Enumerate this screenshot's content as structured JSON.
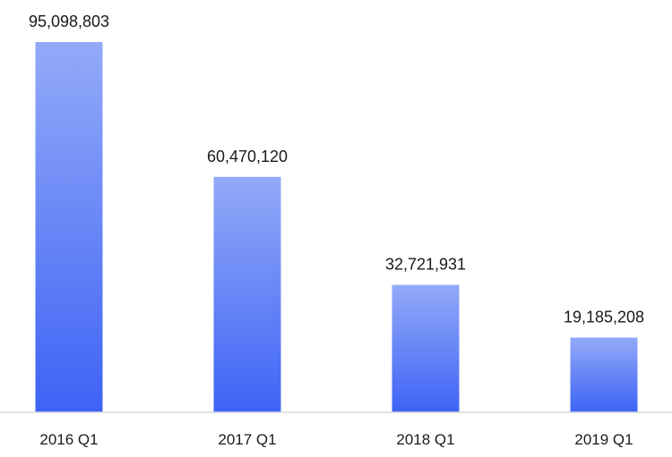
{
  "chart_data": {
    "type": "bar",
    "categories": [
      "2016 Q1",
      "2017 Q1",
      "2018 Q1",
      "2019 Q1"
    ],
    "values": [
      95098803,
      60470120,
      32721931,
      19185208
    ],
    "value_labels": [
      "95,098,803",
      "60,470,120",
      "32,721,931",
      "19,185,208"
    ],
    "title": "",
    "xlabel": "",
    "ylabel": "",
    "ylim": [
      0,
      95098803
    ],
    "grid": false,
    "legend": "none",
    "colors": {
      "bar_top": "#93aaf8",
      "bar_bottom": "#3e63f5",
      "axis": "#d9d9d9"
    }
  }
}
